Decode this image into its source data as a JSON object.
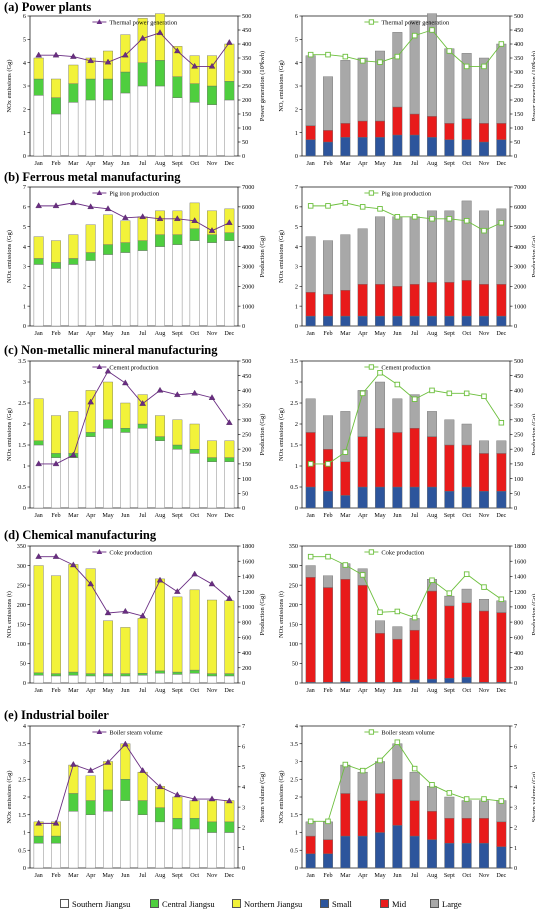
{
  "months": [
    "Jan",
    "Feb",
    "Mar",
    "Apr",
    "May",
    "Jun",
    "Jul",
    "Aug",
    "Sept",
    "Oct",
    "Nov",
    "Dec"
  ],
  "colors": {
    "southern": "#ffffff",
    "central": "#4fce3f",
    "northern": "#f2f23a",
    "small": "#2d559c",
    "mid": "#e81b1b",
    "large": "#a8a8a8",
    "line_left": "#6a2d83",
    "line_right": "#6cbf3c"
  },
  "legend": [
    {
      "key": "southern",
      "label": "Southern Jiangsu"
    },
    {
      "key": "central",
      "label": "Central Jiangsu"
    },
    {
      "key": "northern",
      "label": "Northern Jiangsu"
    },
    {
      "key": "small",
      "label": "Small"
    },
    {
      "key": "mid",
      "label": "Mid"
    },
    {
      "key": "large",
      "label": "Large"
    }
  ],
  "sections": [
    {
      "id": "power",
      "title": "(a) Power plants"
    },
    {
      "id": "ferrous",
      "title": "(b) Ferrous metal manufacturing"
    },
    {
      "id": "nonmetal",
      "title": "(c) Non-metallic mineral manufacturing"
    },
    {
      "id": "chemical",
      "title": "(d) Chemical manufacturing"
    },
    {
      "id": "boiler",
      "title": "(e) Industrial boiler"
    }
  ],
  "chart_data": [
    {
      "type": "bar",
      "section": "power",
      "side": "left",
      "stack": "region",
      "ylabel": "NOx emissions (Gg)",
      "y2label": "Power generation (10⁹kwh)",
      "ylim": [
        0,
        6
      ],
      "yticks": [
        0,
        1,
        2,
        3,
        4,
        5,
        6
      ],
      "y2lim": [
        0,
        500
      ],
      "y2ticks": [
        0,
        50,
        100,
        150,
        200,
        250,
        300,
        350,
        400,
        450,
        500
      ],
      "series": [
        {
          "key": "southern",
          "values": [
            2.6,
            1.8,
            2.3,
            2.4,
            2.4,
            2.7,
            3.0,
            3.0,
            2.5,
            2.3,
            2.2,
            2.4
          ]
        },
        {
          "key": "central",
          "values": [
            0.7,
            0.7,
            0.8,
            0.9,
            0.9,
            0.9,
            1.0,
            1.1,
            0.9,
            0.8,
            0.8,
            0.8
          ]
        },
        {
          "key": "northern",
          "values": [
            0.9,
            0.8,
            0.8,
            0.9,
            1.2,
            1.6,
            1.9,
            2.0,
            1.3,
            1.2,
            1.3,
            1.6
          ]
        }
      ],
      "line": {
        "name": "Thermal power generation",
        "marker": "triangle",
        "values": [
          360,
          360,
          355,
          340,
          335,
          360,
          420,
          440,
          375,
          320,
          320,
          405
        ]
      }
    },
    {
      "type": "bar",
      "section": "power",
      "side": "right",
      "stack": "size",
      "ylabel": "NOₓ emissions (Gg)",
      "y2label": "Power generation (10⁹kwh)",
      "ylim": [
        0,
        6
      ],
      "yticks": [
        0,
        1,
        2,
        3,
        4,
        5,
        6
      ],
      "y2lim": [
        0,
        500
      ],
      "y2ticks": [
        0,
        50,
        100,
        150,
        200,
        250,
        300,
        350,
        400,
        450,
        500
      ],
      "series": [
        {
          "key": "small",
          "values": [
            0.7,
            0.6,
            0.8,
            0.8,
            0.8,
            0.9,
            0.9,
            0.8,
            0.7,
            0.7,
            0.6,
            0.7
          ]
        },
        {
          "key": "mid",
          "values": [
            0.6,
            0.5,
            0.6,
            0.7,
            0.7,
            1.2,
            0.9,
            0.9,
            0.7,
            0.9,
            0.8,
            0.7
          ]
        },
        {
          "key": "large",
          "values": [
            3.0,
            2.3,
            2.7,
            2.7,
            3.0,
            3.2,
            4.0,
            4.4,
            3.2,
            2.8,
            2.8,
            3.4
          ]
        }
      ],
      "line": {
        "name": "Thermal power generation",
        "marker": "square",
        "values": [
          362,
          362,
          355,
          340,
          335,
          355,
          430,
          450,
          375,
          320,
          320,
          400
        ]
      }
    },
    {
      "type": "bar",
      "section": "ferrous",
      "side": "left",
      "stack": "region",
      "ylabel": "NOx emissions (Gg)",
      "y2label": "Production (Gg)",
      "ylim": [
        0,
        7
      ],
      "yticks": [
        0,
        1,
        2,
        3,
        4,
        5,
        6,
        7
      ],
      "y2lim": [
        0,
        7000
      ],
      "y2ticks": [
        0,
        1000,
        2000,
        3000,
        4000,
        5000,
        6000,
        7000
      ],
      "series": [
        {
          "key": "southern",
          "values": [
            3.1,
            2.9,
            3.1,
            3.3,
            3.6,
            3.7,
            3.8,
            4.0,
            4.1,
            4.3,
            4.2,
            4.3
          ]
        },
        {
          "key": "central",
          "values": [
            0.3,
            0.3,
            0.3,
            0.4,
            0.5,
            0.5,
            0.5,
            0.6,
            0.5,
            0.6,
            0.4,
            0.4
          ]
        },
        {
          "key": "northern",
          "values": [
            1.1,
            1.1,
            1.2,
            1.4,
            1.5,
            1.1,
            1.2,
            1.2,
            1.2,
            1.3,
            1.2,
            1.2
          ]
        }
      ],
      "line": {
        "name": "Pig iron production",
        "marker": "triangle",
        "values": [
          6050,
          6050,
          6200,
          6000,
          5900,
          5450,
          5500,
          5400,
          5400,
          5300,
          4800,
          5200
        ]
      }
    },
    {
      "type": "bar",
      "section": "ferrous",
      "side": "right",
      "stack": "size",
      "ylabel": "NOx emissions (Gg)",
      "y2label": "Production (Gg)",
      "ylim": [
        0,
        7
      ],
      "yticks": [
        0,
        1,
        2,
        3,
        4,
        5,
        6,
        7
      ],
      "y2lim": [
        0,
        7000
      ],
      "y2ticks": [
        0,
        1000,
        2000,
        3000,
        4000,
        5000,
        6000,
        7000
      ],
      "series": [
        {
          "key": "small",
          "values": [
            0.5,
            0.5,
            0.5,
            0.5,
            0.5,
            0.5,
            0.5,
            0.5,
            0.5,
            0.5,
            0.5,
            0.5
          ]
        },
        {
          "key": "mid",
          "values": [
            1.2,
            1.1,
            1.3,
            1.6,
            1.6,
            1.5,
            1.6,
            1.7,
            1.7,
            1.8,
            1.6,
            1.6
          ]
        },
        {
          "key": "large",
          "values": [
            2.8,
            2.7,
            2.8,
            2.8,
            3.4,
            3.5,
            3.4,
            3.6,
            3.6,
            4.0,
            3.7,
            3.8
          ]
        }
      ],
      "line": {
        "name": "Pig iron production",
        "marker": "square",
        "values": [
          6050,
          6050,
          6200,
          6000,
          5900,
          5500,
          5500,
          5400,
          5400,
          5300,
          4800,
          5200
        ]
      }
    },
    {
      "type": "bar",
      "section": "nonmetal",
      "side": "left",
      "stack": "region",
      "ylabel": "NOx emissions (Gg)",
      "y2label": "Production (Gg)",
      "ylim": [
        0,
        3.5
      ],
      "yticks": [
        0,
        0.5,
        1,
        1.5,
        2,
        2.5,
        3,
        3.5
      ],
      "y2lim": [
        0,
        500
      ],
      "y2ticks": [
        0,
        50,
        100,
        150,
        200,
        250,
        300,
        350,
        400,
        450,
        500
      ],
      "series": [
        {
          "key": "southern",
          "values": [
            1.5,
            1.2,
            1.2,
            1.7,
            1.9,
            1.8,
            1.9,
            1.6,
            1.4,
            1.3,
            1.1,
            1.1
          ]
        },
        {
          "key": "central",
          "values": [
            0.1,
            0.1,
            0.1,
            0.1,
            0.2,
            0.1,
            0.1,
            0.1,
            0.1,
            0.1,
            0.1,
            0.1
          ]
        },
        {
          "key": "northern",
          "values": [
            1.0,
            0.9,
            1.0,
            1.0,
            0.9,
            0.6,
            0.7,
            0.5,
            0.6,
            0.6,
            0.4,
            0.4
          ]
        }
      ],
      "line": {
        "name": "Cement production",
        "marker": "triangle",
        "values": [
          150,
          150,
          180,
          360,
          465,
          425,
          355,
          400,
          385,
          390,
          375,
          290
        ]
      }
    },
    {
      "type": "bar",
      "section": "nonmetal",
      "side": "right",
      "stack": "size",
      "ylabel": "NOx emissions (Gg)",
      "y2label": "Production (Gg)",
      "ylim": [
        0,
        3.5
      ],
      "yticks": [
        0,
        0.5,
        1,
        1.5,
        2,
        2.5,
        3,
        3.5
      ],
      "y2lim": [
        0,
        500
      ],
      "y2ticks": [
        0,
        50,
        100,
        150,
        200,
        250,
        300,
        350,
        400,
        450,
        500
      ],
      "series": [
        {
          "key": "small",
          "values": [
            0.5,
            0.4,
            0.3,
            0.5,
            0.5,
            0.5,
            0.5,
            0.5,
            0.4,
            0.5,
            0.4,
            0.4
          ]
        },
        {
          "key": "mid",
          "values": [
            1.3,
            1.0,
            0.8,
            1.2,
            1.4,
            1.3,
            1.4,
            1.2,
            1.1,
            1.0,
            0.9,
            0.9
          ]
        },
        {
          "key": "large",
          "values": [
            0.8,
            0.8,
            1.2,
            1.1,
            1.1,
            0.8,
            0.8,
            0.6,
            0.6,
            0.5,
            0.3,
            0.3
          ]
        }
      ],
      "line": {
        "name": "Cement production",
        "marker": "square",
        "values": [
          150,
          150,
          190,
          390,
          460,
          420,
          370,
          400,
          390,
          390,
          380,
          290
        ]
      }
    },
    {
      "type": "bar",
      "section": "chemical",
      "side": "left",
      "stack": "region",
      "ylabel": "NOx emissions (t)",
      "y2label": "Production (Gg)",
      "ylim": [
        0,
        350
      ],
      "yticks": [
        0,
        50,
        100,
        150,
        200,
        250,
        300,
        350
      ],
      "y2lim": [
        0,
        1800
      ],
      "y2ticks": [
        0,
        200,
        400,
        600,
        800,
        1000,
        1200,
        1400,
        1600,
        1800
      ],
      "series": [
        {
          "key": "southern",
          "values": [
            20,
            18,
            20,
            18,
            18,
            18,
            20,
            25,
            22,
            25,
            18,
            18
          ]
        },
        {
          "key": "central",
          "values": [
            6,
            6,
            8,
            6,
            6,
            6,
            5,
            6,
            6,
            8,
            6,
            6
          ]
        },
        {
          "key": "northern",
          "values": [
            274,
            250,
            275,
            268,
            135,
            118,
            140,
            235,
            192,
            205,
            188,
            186
          ]
        }
      ],
      "line": {
        "name": "Coke production",
        "marker": "triangle",
        "values": [
          1660,
          1660,
          1550,
          1300,
          920,
          940,
          880,
          1350,
          1200,
          1430,
          1300,
          1110
        ]
      }
    },
    {
      "type": "bar",
      "section": "chemical",
      "side": "right",
      "stack": "size",
      "ylabel": "NOx emissions (t)",
      "y2label": "Production (Gg)",
      "ylim": [
        0,
        350
      ],
      "yticks": [
        0,
        50,
        100,
        150,
        200,
        250,
        300,
        350
      ],
      "y2lim": [
        0,
        1800
      ],
      "y2ticks": [
        0,
        200,
        400,
        600,
        800,
        1000,
        1200,
        1400,
        1600,
        1800
      ],
      "series": [
        {
          "key": "small",
          "values": [
            2,
            2,
            3,
            2,
            2,
            2,
            8,
            10,
            12,
            15,
            2,
            2
          ]
        },
        {
          "key": "mid",
          "values": [
            268,
            242,
            262,
            248,
            125,
            110,
            127,
            225,
            185,
            190,
            182,
            178
          ]
        },
        {
          "key": "large",
          "values": [
            30,
            30,
            40,
            42,
            32,
            32,
            30,
            30,
            25,
            35,
            30,
            30
          ]
        }
      ],
      "line": {
        "name": "Coke production",
        "marker": "square",
        "values": [
          1660,
          1660,
          1550,
          1420,
          930,
          940,
          860,
          1350,
          1180,
          1430,
          1260,
          1100
        ]
      }
    },
    {
      "type": "bar",
      "section": "boiler",
      "side": "left",
      "stack": "region",
      "ylabel": "NOx emissions (Gg)",
      "y2label": "Steam volume (Gg)",
      "ylim": [
        0,
        4
      ],
      "yticks": [
        0,
        0.5,
        1,
        1.5,
        2,
        2.5,
        3,
        3.5,
        4
      ],
      "y2lim": [
        0,
        7
      ],
      "y2ticks": [
        0,
        1,
        2,
        3,
        4,
        5,
        6,
        7
      ],
      "series": [
        {
          "key": "southern",
          "values": [
            0.7,
            0.7,
            1.6,
            1.5,
            1.6,
            1.9,
            1.5,
            1.3,
            1.1,
            1.1,
            1.0,
            1.0
          ]
        },
        {
          "key": "central",
          "values": [
            0.2,
            0.2,
            0.5,
            0.4,
            0.6,
            0.6,
            0.4,
            0.4,
            0.3,
            0.3,
            0.3,
            0.3
          ]
        },
        {
          "key": "northern",
          "values": [
            0.4,
            0.4,
            0.8,
            0.7,
            0.8,
            1.0,
            0.8,
            0.6,
            0.6,
            0.5,
            0.6,
            0.6
          ]
        }
      ],
      "line": {
        "name": "Boiler steam volume",
        "marker": "triangle",
        "values": [
          2.2,
          2.2,
          5.1,
          4.8,
          5.2,
          6.1,
          4.8,
          4.0,
          3.6,
          3.4,
          3.4,
          3.3
        ]
      }
    },
    {
      "type": "bar",
      "section": "boiler",
      "side": "right",
      "stack": "size",
      "ylabel": "NOx emissions (Gg)",
      "y2label": "Steam volume (Gg)",
      "ylim": [
        0,
        4
      ],
      "yticks": [
        0,
        0.5,
        1,
        1.5,
        2,
        2.5,
        3,
        3.5,
        4
      ],
      "y2lim": [
        0,
        7
      ],
      "y2ticks": [
        0,
        1,
        2,
        3,
        4,
        5,
        6,
        7
      ],
      "series": [
        {
          "key": "small",
          "values": [
            0.4,
            0.4,
            0.9,
            0.9,
            1.0,
            1.2,
            0.9,
            0.8,
            0.7,
            0.7,
            0.7,
            0.6
          ]
        },
        {
          "key": "mid",
          "values": [
            0.5,
            0.4,
            1.2,
            1.0,
            1.1,
            1.3,
            1.0,
            0.8,
            0.7,
            0.7,
            0.7,
            0.7
          ]
        },
        {
          "key": "large",
          "values": [
            0.4,
            0.5,
            0.8,
            0.8,
            0.9,
            1.0,
            0.8,
            0.7,
            0.6,
            0.5,
            0.5,
            0.6
          ]
        }
      ],
      "line": {
        "name": "Boiler steam volume",
        "marker": "square",
        "values": [
          2.3,
          2.3,
          5.1,
          4.8,
          5.3,
          6.2,
          4.9,
          4.1,
          3.7,
          3.4,
          3.4,
          3.3
        ]
      }
    }
  ]
}
